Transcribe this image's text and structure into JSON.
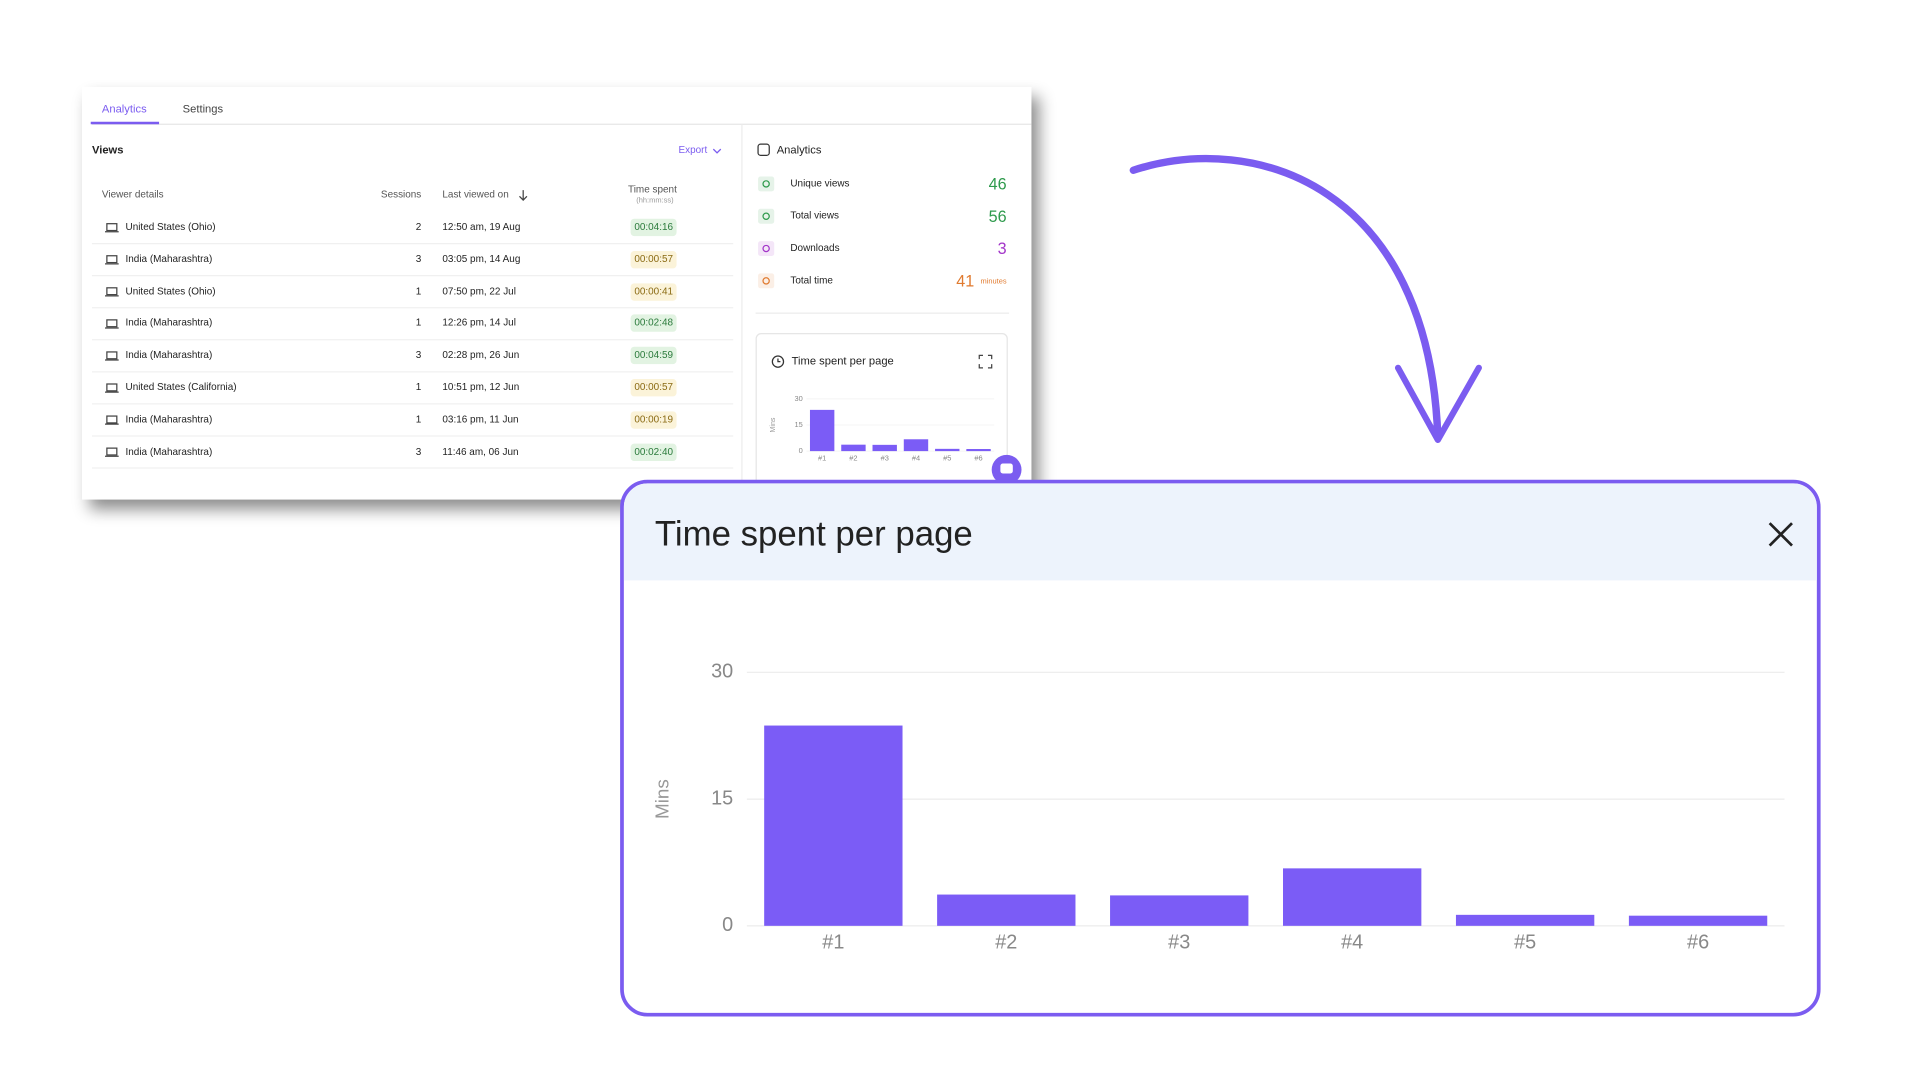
{
  "tabs": [
    "Analytics",
    "Settings"
  ],
  "views": {
    "title": "Views",
    "export": "Export",
    "columns": [
      "Viewer details",
      "Sessions",
      "Last viewed on",
      "Time spent"
    ],
    "time_spent_unit": "(hh:mm:ss)",
    "rows": [
      {
        "viewer": "United States (Ohio)",
        "sessions": 2,
        "last_viewed": "12:50 am, 19 Aug",
        "time_spent": "00:04:16",
        "tone": "green"
      },
      {
        "viewer": "India (Maharashtra)",
        "sessions": 3,
        "last_viewed": "03:05 pm, 14 Aug",
        "time_spent": "00:00:57",
        "tone": "yellow"
      },
      {
        "viewer": "United States (Ohio)",
        "sessions": 1,
        "last_viewed": "07:50 pm, 22 Jul",
        "time_spent": "00:00:41",
        "tone": "yellow"
      },
      {
        "viewer": "India (Maharashtra)",
        "sessions": 1,
        "last_viewed": "12:26 pm, 14 Jul",
        "time_spent": "00:02:48",
        "tone": "green"
      },
      {
        "viewer": "India (Maharashtra)",
        "sessions": 3,
        "last_viewed": "02:28 pm, 26 Jun",
        "time_spent": "00:04:59",
        "tone": "green"
      },
      {
        "viewer": "United States (California)",
        "sessions": 1,
        "last_viewed": "10:51 pm, 12 Jun",
        "time_spent": "00:00:57",
        "tone": "yellow"
      },
      {
        "viewer": "India (Maharashtra)",
        "sessions": 1,
        "last_viewed": "03:16 pm, 11 Jun",
        "time_spent": "00:00:19",
        "tone": "yellow"
      },
      {
        "viewer": "India (Maharashtra)",
        "sessions": 3,
        "last_viewed": "11:46 am, 06 Jun",
        "time_spent": "00:02:40",
        "tone": "green"
      }
    ]
  },
  "analytics": {
    "title": "Analytics",
    "stats": [
      {
        "label": "Unique views",
        "value": 46,
        "color": "#2e9a4c"
      },
      {
        "label": "Total views",
        "value": 56,
        "color": "#2e9a4c"
      },
      {
        "label": "Downloads",
        "value": 3,
        "color": "#a335c9"
      },
      {
        "label": "Total time",
        "value": 41,
        "unit": "minutes",
        "color": "#e07a2f"
      }
    ]
  },
  "chart_data": {
    "type": "bar",
    "title": "Time spent per page",
    "y_label": "Mins",
    "categories": [
      "#1",
      "#2",
      "#3",
      "#4",
      "#5",
      "#6"
    ],
    "values": [
      23.7,
      3.7,
      3.6,
      6.8,
      1.3,
      1.2
    ],
    "color": "#7b5cf6",
    "ylim": [
      0,
      30
    ],
    "yticks": [
      0,
      15,
      30
    ],
    "grid": true
  }
}
